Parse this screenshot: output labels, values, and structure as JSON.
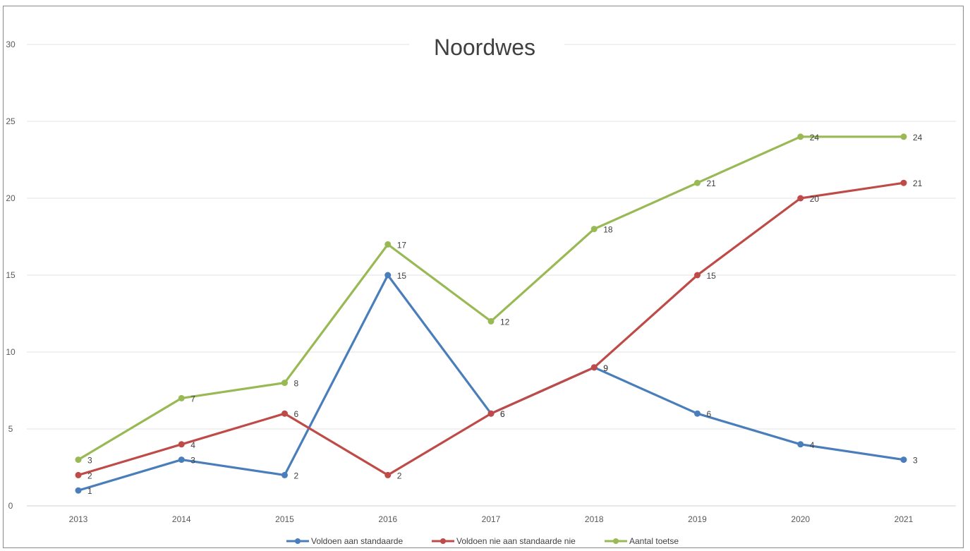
{
  "chart_data": {
    "type": "line",
    "title": "Noordwes",
    "xlabel": "",
    "ylabel": "",
    "categories": [
      "2013",
      "2014",
      "2015",
      "2016",
      "2017",
      "2018",
      "2019",
      "2020",
      "2021"
    ],
    "ylim": [
      0,
      30
    ],
    "yticks": [
      0,
      5,
      10,
      15,
      20,
      25,
      30
    ],
    "grid": true,
    "legend_position": "bottom",
    "series": [
      {
        "name": "Voldoen aan standaarde",
        "color": "#4a7ebb",
        "values": [
          1,
          3,
          2,
          15,
          6,
          9,
          6,
          4,
          3
        ]
      },
      {
        "name": "Voldoen nie aan standaarde nie",
        "color": "#be4b48",
        "values": [
          2,
          4,
          6,
          2,
          6,
          9,
          15,
          20,
          21
        ]
      },
      {
        "name": "Aantal toetse",
        "color": "#98b954",
        "values": [
          3,
          7,
          8,
          17,
          12,
          18,
          21,
          24,
          24
        ]
      }
    ]
  }
}
